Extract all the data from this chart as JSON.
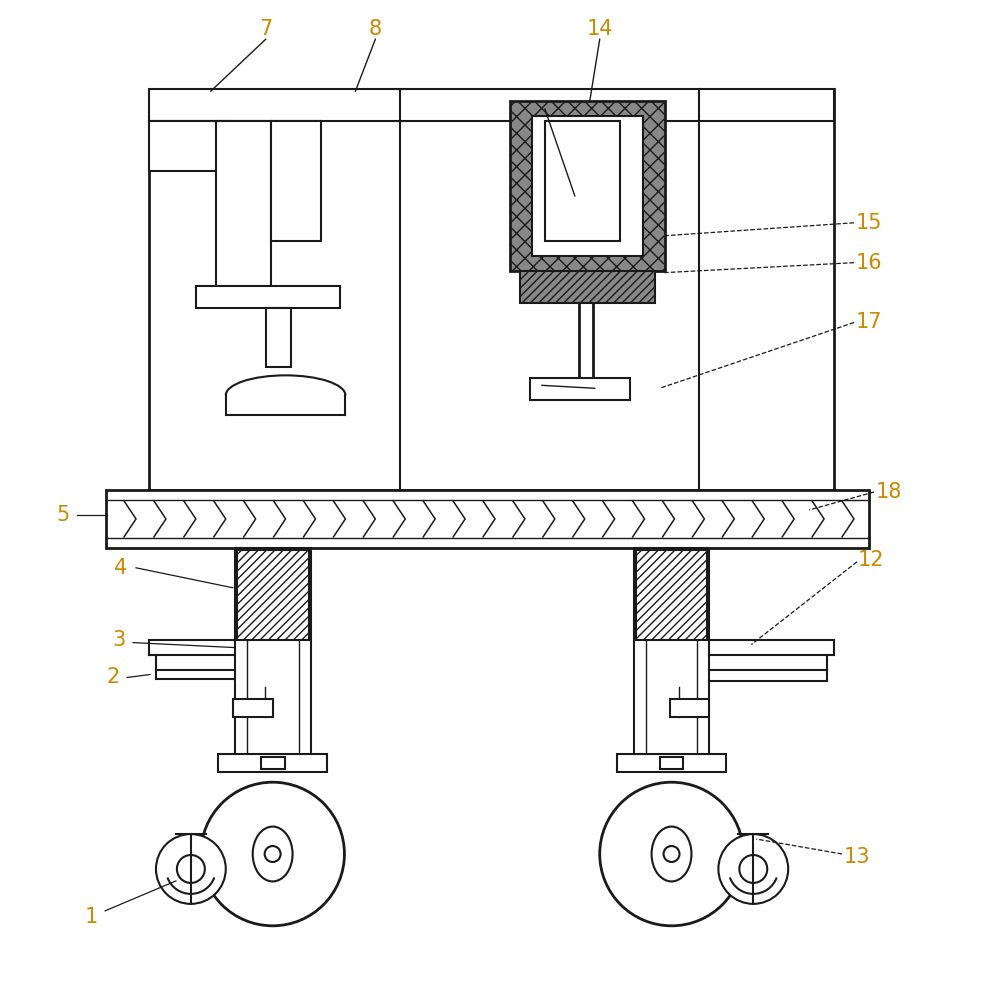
{
  "bg_color": "#ffffff",
  "line_color": "#1a1a1a",
  "label_color": "#cc8800",
  "figsize": [
    10.0,
    9.97
  ],
  "dpi": 100,
  "label_fontsize": 15,
  "line_width": 1.5
}
